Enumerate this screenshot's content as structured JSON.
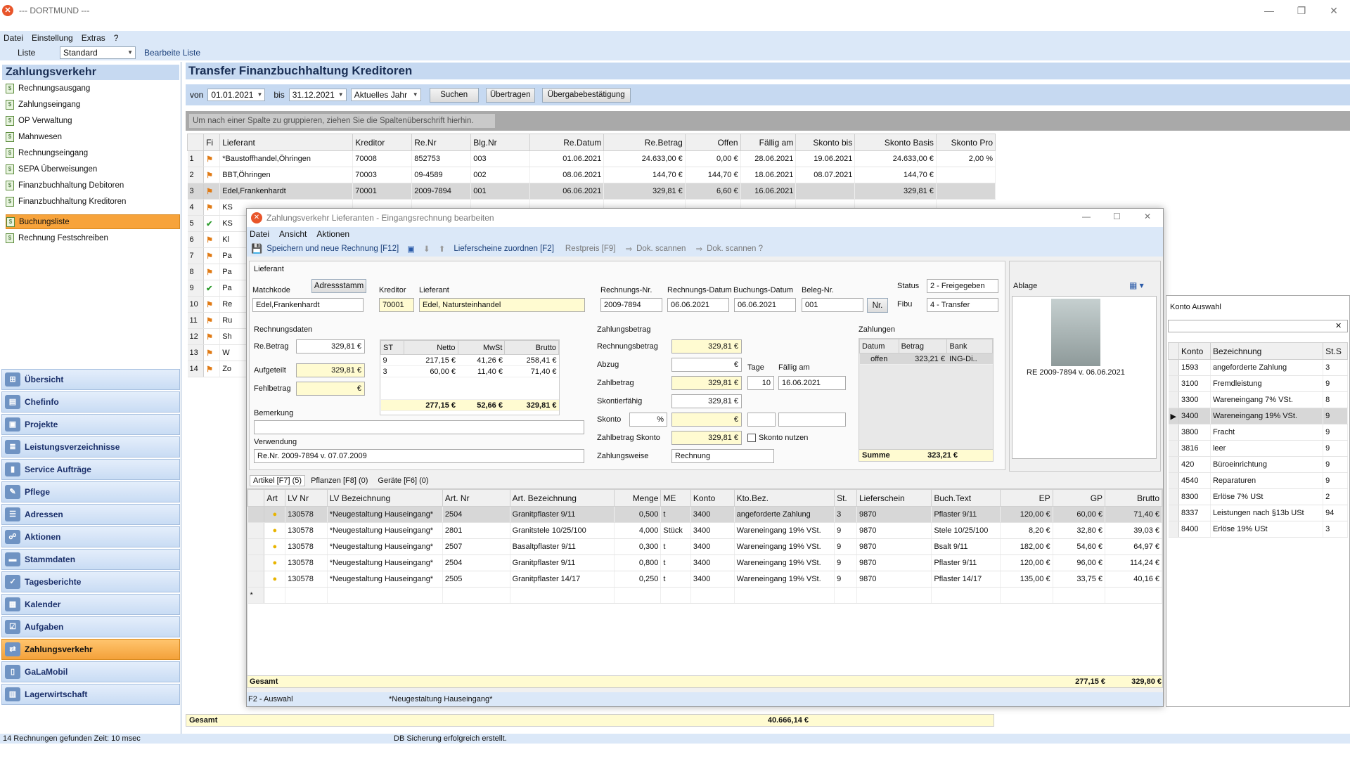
{
  "window": {
    "title": "--- DORTMUND ---"
  },
  "menu": [
    "Datei",
    "Einstellung",
    "Extras",
    "?"
  ],
  "listbar": {
    "liste": "Liste",
    "layout": "Standard",
    "edit": "Bearbeite Liste"
  },
  "left": {
    "title": "Zahlungsverkehr",
    "items": [
      "Rechnungsausgang",
      "Zahlungseingang",
      "OP Verwaltung",
      "Mahnwesen",
      "Rechnungseingang",
      "SEPA Überweisungen",
      "Finanzbuchhaltung Debitoren",
      "Finanzbuchhaltung Kreditoren",
      "Buchungsliste",
      "Rechnung Festschreiben"
    ],
    "nav": [
      "Übersicht",
      "Chefinfo",
      "Projekte",
      "Leistungsverzeichnisse",
      "Service Aufträge",
      "Pflege",
      "Adressen",
      "Aktionen",
      "Stammdaten",
      "Tagesberichte",
      "Kalender",
      "Aufgaben",
      "Zahlungsverkehr",
      "GaLaMobil",
      "Lagerwirtschaft"
    ]
  },
  "main": {
    "title": "Transfer Finanzbuchhaltung Kreditoren",
    "filter": {
      "von_label": "von",
      "von": "01.01.2021",
      "bis_label": "bis",
      "bis": "31.12.2021",
      "period": "Aktuelles Jahr",
      "search": "Suchen",
      "transfer": "Übertragen",
      "confirm": "Übergabebestätigung"
    },
    "grouphint": "Um nach einer Spalte zu gruppieren, ziehen Sie die Spaltenüberschrift hierhin.",
    "columns": [
      "Fi",
      "Lieferant",
      "Kreditor",
      "Re.Nr",
      "Blg.Nr",
      "Re.Datum",
      "Re.Betrag",
      "Offen",
      "Fällig am",
      "Skonto bis",
      "Skonto Basis",
      "Skonto Pro"
    ],
    "rows": [
      [
        "1",
        "*Baustoffhandel,Öhringen",
        "70008",
        "852753",
        "003",
        "01.06.2021",
        "24.633,00 €",
        "0,00 €",
        "28.06.2021",
        "19.06.2021",
        "24.633,00 €",
        "2,00 %"
      ],
      [
        "2",
        "BBT,Öhringen",
        "70003",
        "09-4589",
        "002",
        "08.06.2021",
        "144,70 €",
        "144,70 €",
        "18.06.2021",
        "08.07.2021",
        "144,70 €",
        ""
      ],
      [
        "3",
        "Edel,Frankenhardt",
        "70001",
        "2009-7894",
        "001",
        "06.06.2021",
        "329,81 €",
        "6,60 €",
        "16.06.2021",
        "",
        "329,81 €",
        ""
      ]
    ],
    "partial_rows": [
      [
        "4",
        "KS"
      ],
      [
        "5",
        "KS"
      ],
      [
        "6",
        "Kl"
      ],
      [
        "7",
        "Pa"
      ],
      [
        "8",
        "Pa"
      ],
      [
        "9",
        "Pa"
      ],
      [
        "10",
        "Re"
      ],
      [
        "11",
        "Ru"
      ],
      [
        "12",
        "Sh"
      ],
      [
        "13",
        "W"
      ],
      [
        "14",
        "Zo"
      ]
    ],
    "total_label": "Gesamt",
    "total_value": "40.666,14 €"
  },
  "status": {
    "left": "14 Rechnungen gefunden Zeit: 10 msec",
    "center": "DB Sicherung erfolgreich erstellt."
  },
  "dialog": {
    "title": "Zahlungsverkehr Lieferanten - Eingangsrechnung bearbeiten",
    "menu": [
      "Datei",
      "Ansicht",
      "Aktionen"
    ],
    "toolbar": {
      "save": "Speichern und neue Rechnung [F12]",
      "lieferscheine": "Lieferscheine zuordnen [F2]",
      "restpreis": "Restpreis [F9]",
      "scan1": "Dok. scannen",
      "scan2": "Dok. scannen ?"
    },
    "lieferant": {
      "section": "Lieferant",
      "adressstamm": "Adressstamm",
      "matchkode_label": "Matchkode",
      "matchkode": "Edel,Frankenhardt",
      "kreditor_label": "Kreditor",
      "kreditor": "70001",
      "lieferant_label": "Lieferant",
      "lieferant": "Edel, Natursteinhandel",
      "renr_label": "Rechnungs-Nr.",
      "renr": "2009-7894",
      "redatum_label": "Rechnungs-Datum",
      "redatum": "06.06.2021",
      "budatum_label": "Buchungs-Datum",
      "budatum": "06.06.2021",
      "belegnr_label": "Beleg-Nr.",
      "belegnr": "001",
      "nr_btn": "Nr.",
      "status_label": "Status",
      "status": "2 - Freigegeben",
      "fibu_label": "Fibu",
      "fibu": "4 - Transfer"
    },
    "rechnungsdaten": {
      "section": "Rechnungsdaten",
      "rebetrag_label": "Re.Betrag",
      "rebetrag": "329,81 €",
      "aufgeteilt_label": "Aufgeteilt",
      "aufgeteilt": "329,81 €",
      "fehlbetrag_label": "Fehlbetrag",
      "fehlbetrag": "€",
      "st_cols": [
        "ST",
        "Netto",
        "MwSt",
        "Brutto"
      ],
      "st_rows": [
        [
          "9",
          "217,15 €",
          "41,26 €",
          "258,41 €"
        ],
        [
          "3",
          "60,00 €",
          "11,40 €",
          "71,40 €"
        ]
      ],
      "st_total": [
        "277,15 €",
        "52,66 €",
        "329,81 €"
      ],
      "bemerkung_label": "Bemerkung",
      "verwendung_label": "Verwendung",
      "verwendung": "Re.Nr. 2009-7894 v. 07.07.2009"
    },
    "zahlungsbetrag": {
      "section": "Zahlungsbetrag",
      "rb_label": "Rechnungsbetrag",
      "rb": "329,81 €",
      "abzug_label": "Abzug",
      "abzug": "€",
      "zb_label": "Zahlbetrag",
      "zb": "329,81 €",
      "tage_label": "Tage",
      "tage": "10",
      "faellig_label": "Fällig am",
      "faellig": "16.06.2021",
      "sf_label": "Skontierfähig",
      "sf": "329,81 €",
      "skonto_label": "Skonto",
      "skonto_pct": "%",
      "skonto": "€",
      "zbs_label": "Zahlbetrag Skonto",
      "zbs": "329,81 €",
      "skonto_nutzen": "Skonto nutzen",
      "zw_label": "Zahlungsweise",
      "zw": "Rechnung"
    },
    "zahlungen": {
      "section": "Zahlungen",
      "cols": [
        "Datum",
        "Betrag",
        "Bank"
      ],
      "rows": [
        [
          "offen",
          "323,21 €",
          "ING-Di.."
        ]
      ],
      "summe_label": "Summe",
      "summe": "323,21 €"
    },
    "ablage": {
      "label": "Ablage",
      "doc": "RE 2009-7894 v. 06.06.2021"
    },
    "tabs": [
      "Artikel [F7] (5)",
      "Pflanzen [F8] (0)",
      "Geräte [F6] (0)"
    ],
    "art_cols": [
      "Art",
      "LV Nr",
      "LV Bezeichnung",
      "Art. Nr",
      "Art. Bezeichnung",
      "Menge",
      "ME",
      "Konto",
      "Kto.Bez.",
      "St.",
      "Lieferschein",
      "Buch.Text",
      "EP",
      "GP",
      "Brutto"
    ],
    "art_rows": [
      [
        "130578",
        "*Neugestaltung Hauseingang*",
        "2504",
        "Granitpflaster 9/11",
        "0,500",
        "t",
        "3400",
        "angeforderte Zahlung",
        "3",
        "9870",
        "Pflaster 9/11",
        "120,00 €",
        "60,00 €",
        "71,40 €"
      ],
      [
        "130578",
        "*Neugestaltung Hauseingang*",
        "2801",
        "Granitstele 10/25/100",
        "4,000",
        "Stück",
        "3400",
        "Wareneingang 19% VSt.",
        "9",
        "9870",
        "Stele 10/25/100",
        "8,20 €",
        "32,80 €",
        "39,03 €"
      ],
      [
        "130578",
        "*Neugestaltung Hauseingang*",
        "2507",
        "Basaltpflaster 9/11",
        "0,300",
        "t",
        "3400",
        "Wareneingang 19% VSt.",
        "9",
        "9870",
        "Bsalt 9/11",
        "182,00 €",
        "54,60 €",
        "64,97 €"
      ],
      [
        "130578",
        "*Neugestaltung Hauseingang*",
        "2504",
        "Granitpflaster 9/11",
        "0,800",
        "t",
        "3400",
        "Wareneingang 19% VSt.",
        "9",
        "9870",
        "Pflaster 9/11",
        "120,00 €",
        "96,00 €",
        "114,24 €"
      ],
      [
        "130578",
        "*Neugestaltung Hauseingang*",
        "2505",
        "Granitpflaster 14/17",
        "0,250",
        "t",
        "3400",
        "Wareneingang 19% VSt.",
        "9",
        "9870",
        "Pflaster 14/17",
        "135,00 €",
        "33,75 €",
        "40,16 €"
      ]
    ],
    "gesamt_label": "Gesamt",
    "gesamt_gp": "277,15 €",
    "gesamt_brutto": "329,80 €",
    "footer_left": "F2 - Auswahl",
    "footer_center": "*Neugestaltung Hauseingang*"
  },
  "konto": {
    "title": "Konto Auswahl",
    "cols": [
      "Konto",
      "Bezeichnung",
      "St.S"
    ],
    "rows": [
      [
        "1593",
        "angeforderte Zahlung",
        "3"
      ],
      [
        "3100",
        "Fremdleistung",
        "9"
      ],
      [
        "3300",
        "Wareneingang 7% VSt.",
        "8"
      ],
      [
        "3400",
        "Wareneingang 19% VSt.",
        "9"
      ],
      [
        "3800",
        "Fracht",
        "9"
      ],
      [
        "3816",
        "leer",
        "9"
      ],
      [
        "420",
        "Büroeinrichtung",
        "9"
      ],
      [
        "4540",
        "Reparaturen",
        "9"
      ],
      [
        "8300",
        "Erlöse 7% USt",
        "2"
      ],
      [
        "8337",
        "Leistungen nach §13b USt",
        "94"
      ],
      [
        "8400",
        "Erlöse 19% USt",
        "3"
      ]
    ]
  }
}
